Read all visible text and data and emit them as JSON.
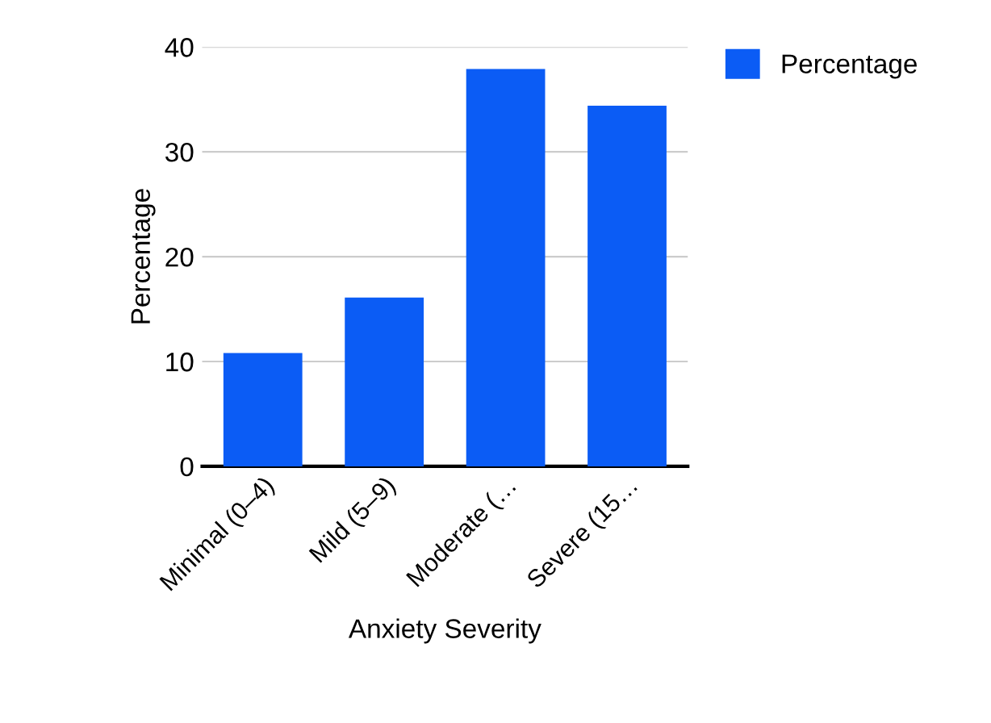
{
  "chart_data": {
    "type": "bar",
    "xlabel": "Anxiety Severity",
    "ylabel": "Percentage",
    "categories": [
      "Minimal (0–4)",
      "Mild (5–9)",
      "Moderate (…",
      "Severe (15…"
    ],
    "series": [
      {
        "name": "Percentage",
        "color": "#0b5cf5",
        "values": [
          10.8,
          16.1,
          37.9,
          34.4
        ]
      }
    ],
    "ylim": [
      0,
      40
    ],
    "yticks": [
      0,
      10,
      20,
      30,
      40
    ],
    "grid": "y",
    "legend": "top right"
  }
}
